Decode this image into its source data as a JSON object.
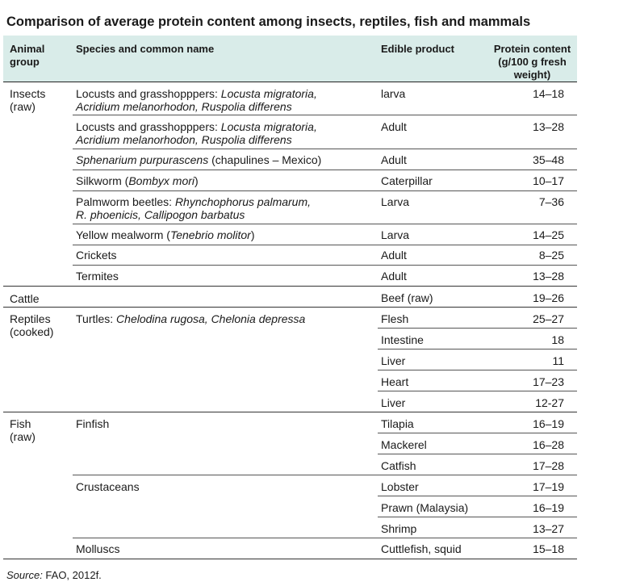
{
  "title": "Comparison of average protein content among insects, reptiles, fish and mammals",
  "headers": {
    "group": "Animal group",
    "species": "Species and common name",
    "product": "Edible product",
    "protein": "Protein content (g/100 g fresh weight)"
  },
  "groups": [
    {
      "label": "Insects (raw)"
    },
    {
      "label": "Cattle"
    },
    {
      "label": "Reptiles (cooked)"
    },
    {
      "label": "Fish (raw)"
    }
  ],
  "rows": [
    {
      "species_plain": "Locusts and grasshopppers: ",
      "species_italic": "Locusta migratoria,",
      "species_line2": "Acridium melanorhodon, Ruspolia differens",
      "product": "larva",
      "protein": "14–18"
    },
    {
      "species_plain": "Locusts and grasshopppers: ",
      "species_italic": "Locusta migratoria,",
      "species_line2": "Acridium melanorhodon, Ruspolia differens",
      "product": "Adult",
      "protein": "13–28"
    },
    {
      "species_italic": "Sphenarium purpurascens",
      "species_suffix": " (chapulines – Mexico)",
      "product": "Adult",
      "protein": "35–48"
    },
    {
      "species_plain": "Silkworm (",
      "species_italic": "Bombyx mori",
      "species_suffix": ")",
      "product": "Caterpillar",
      "protein": "10–17"
    },
    {
      "species_plain": "Palmworm beetles: ",
      "species_italic": "Rhynchophorus palmarum,",
      "species_line2": "R. phoenicis, Callipogon barbatus",
      "product": "Larva",
      "protein": "7–36"
    },
    {
      "species_plain": "Yellow mealworm (",
      "species_italic": "Tenebrio molitor",
      "species_suffix": ")",
      "product": "Larva",
      "protein": "14–25"
    },
    {
      "species_plain": "Crickets",
      "product": "Adult",
      "protein": "8–25"
    },
    {
      "species_plain": "Termites",
      "product": "Adult",
      "protein": "13–28"
    },
    {
      "product": "Beef (raw)",
      "protein": "19–26"
    },
    {
      "species_plain": "Turtles: ",
      "species_italic": "Chelodina rugosa, Chelonia depressa",
      "product": "Flesh",
      "protein": "25–27"
    },
    {
      "product": "Intestine",
      "protein": "18"
    },
    {
      "product": "Liver",
      "protein": "11"
    },
    {
      "product": "Heart",
      "protein": "17–23"
    },
    {
      "product": "Liver",
      "protein": "12-27"
    },
    {
      "species_plain": "Finfish",
      "product": "Tilapia",
      "protein": "16–19"
    },
    {
      "product": "Mackerel",
      "protein": "16–28"
    },
    {
      "product": "Catfish",
      "protein": "17–28"
    },
    {
      "species_plain": "Crustaceans",
      "product": "Lobster",
      "protein": "17–19"
    },
    {
      "product": "Prawn (Malaysia)",
      "protein": "16–19"
    },
    {
      "product": "Shrimp",
      "protein": "13–27"
    },
    {
      "species_plain": "Molluscs",
      "product": "Cuttlefish, squid",
      "protein": "15–18"
    }
  ],
  "source": {
    "label": "Source:",
    "text": " FAO, 2012f."
  }
}
